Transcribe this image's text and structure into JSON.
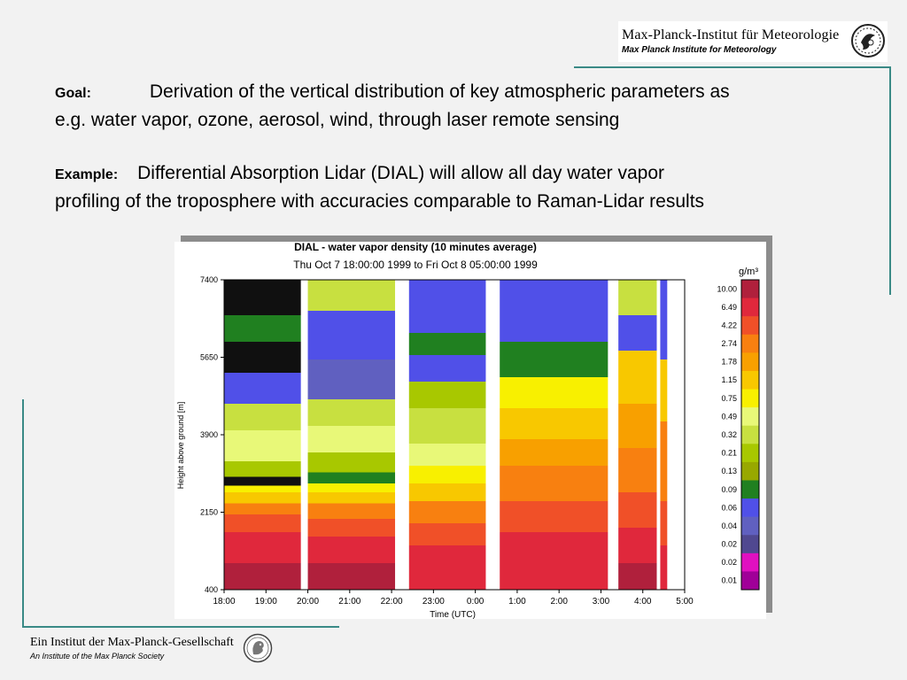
{
  "header": {
    "institute_de": "Max-Planck-Institut für Meteorologie",
    "institute_en": "Max Planck Institute for Meteorology",
    "emblem_icon": "mpi-meteorology-emblem-icon"
  },
  "goal": {
    "label": "Goal:",
    "line1": "Derivation of the vertical distribution of key atmospheric parameters as",
    "line2": "e.g. water vapor, ozone, aerosol, wind, through laser remote sensing"
  },
  "example": {
    "label": "Example:",
    "line1": "Differential Absorption Lidar (DIAL) will allow all day water vapor",
    "line2": "profiling of the troposphere with accuracies comparable to Raman-Lidar results"
  },
  "chart_data": {
    "type": "heatmap",
    "title": "DIAL - water vapor density (10 minutes average)",
    "subtitle": "Thu Oct  7 18:00:00 1999 to Fri Oct  8 05:00:00 1999",
    "xlabel": "Time (UTC)",
    "ylabel": "Height above ground [m]",
    "x_ticks": [
      "18:00",
      "19:00",
      "20:00",
      "21:00",
      "22:00",
      "23:00",
      "0:00",
      "1:00",
      "2:00",
      "3:00",
      "4:00",
      "5:00"
    ],
    "y_ticks": [
      "400",
      "2150",
      "3900",
      "5650",
      "7400"
    ],
    "ylim": [
      400,
      7400
    ],
    "colorbar": {
      "unit": "g/m³",
      "labels": [
        "10.00",
        "6.49",
        "4.22",
        "2.74",
        "1.78",
        "1.15",
        "0.75",
        "0.49",
        "0.32",
        "0.21",
        "0.13",
        "0.09",
        "0.06",
        "0.04",
        "0.02",
        "0.02",
        "0.01"
      ],
      "colors": [
        "#b0203c",
        "#e0283c",
        "#f05028",
        "#f88010",
        "#f8a000",
        "#f8c800",
        "#f8f000",
        "#e8f878",
        "#c8e040",
        "#a8c800",
        "#98a800",
        "#208020",
        "#5050e8",
        "#6060c0",
        "#504890",
        "#e010c0",
        "#a00098"
      ]
    },
    "data_gaps": [
      [
        "19:50",
        "20:00"
      ],
      [
        "22:05",
        "22:25"
      ],
      [
        "0:15",
        "0:35"
      ],
      [
        "3:10",
        "3:25"
      ],
      [
        "4:20",
        "4:25"
      ]
    ],
    "segments": [
      {
        "start": "18:00",
        "end": "19:50"
      },
      {
        "start": "20:00",
        "end": "22:05"
      },
      {
        "start": "22:25",
        "end": "0:15"
      },
      {
        "start": "0:35",
        "end": "3:10"
      },
      {
        "start": "3:25",
        "end": "4:20"
      },
      {
        "start": "4:25",
        "end": "4:35"
      }
    ]
  },
  "footer": {
    "society_de": "Ein Institut der Max-Planck-Gesellschaft",
    "society_en": "An Institute of the Max Planck Society",
    "emblem_icon": "minerva-emblem-icon"
  }
}
